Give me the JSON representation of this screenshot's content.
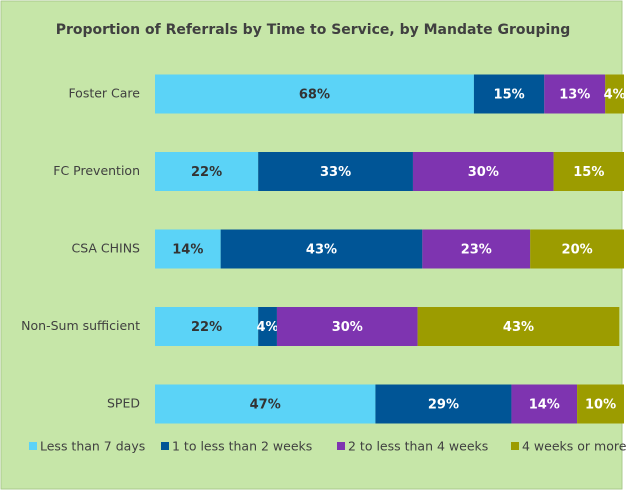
{
  "chart_data": {
    "type": "bar",
    "orientation": "horizontal",
    "stacked": true,
    "title": "Proportion of Referrals by Time to Service, by Mandate Grouping",
    "categories": [
      "Foster Care",
      "FC Prevention",
      "CSA CHINS",
      "Non-Sum sufficient",
      "SPED"
    ],
    "series": [
      {
        "name": "Less than 7 days",
        "color": "#5bd3f7",
        "values": [
          68,
          22,
          14,
          22,
          47
        ],
        "value_labels": [
          "68%",
          "22%",
          "14%",
          "22%",
          "47%"
        ]
      },
      {
        "name": "1 to less than 2 weeks",
        "color": "#005596",
        "values": [
          15,
          33,
          43,
          4,
          29
        ],
        "value_labels": [
          "15%",
          "33%",
          "43%",
          "4%",
          "29%"
        ]
      },
      {
        "name": "2 to less than 4 weeks",
        "color": "#7e34b0",
        "values": [
          13,
          30,
          23,
          30,
          14
        ],
        "value_labels": [
          "13%",
          "30%",
          "23%",
          "30%",
          "14%"
        ]
      },
      {
        "name": "4 weeks or more",
        "color": "#9c9c00",
        "values": [
          4,
          15,
          20,
          43,
          10
        ],
        "value_labels": [
          "4%",
          "15%",
          "20%",
          "43%",
          "10%"
        ]
      }
    ],
    "legend": "bottom"
  }
}
